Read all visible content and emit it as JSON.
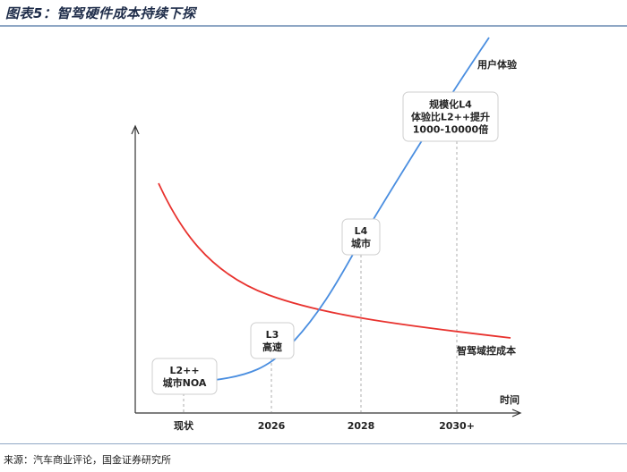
{
  "title": "图表5：智驾硬件成本持续下探",
  "source": "来源：汽车商业评论，国金证券研究所",
  "chart_data": {
    "type": "line",
    "title": "图表5：智驾硬件成本持续下探",
    "xlabel": "时间",
    "ylabel": "",
    "categories": [
      "现状",
      "2026",
      "2028",
      "2030+"
    ],
    "series": [
      {
        "name": "用户体验",
        "color": "#4a8ee0"
      },
      {
        "name": "智驾域控成本",
        "color": "#e8322e"
      }
    ],
    "annotations": [
      {
        "lines": [
          "L2++",
          "城市NOA"
        ]
      },
      {
        "lines": [
          "L3",
          "高速"
        ]
      },
      {
        "lines": [
          "L4",
          "城市"
        ]
      },
      {
        "lines": [
          "规模化L4",
          "体验比L2++提升",
          "1000-10000倍"
        ]
      }
    ],
    "grid": false,
    "legend": "none"
  }
}
